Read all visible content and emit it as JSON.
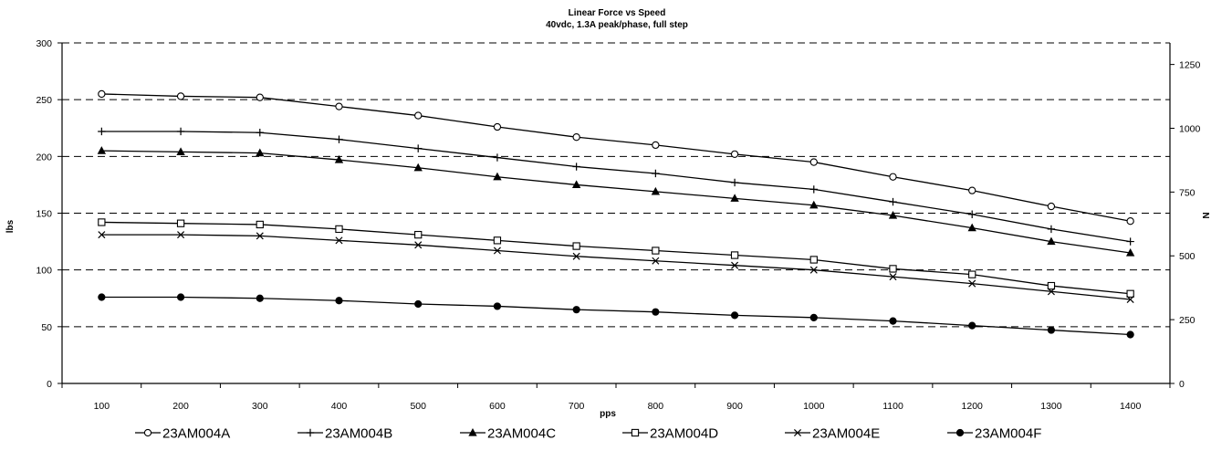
{
  "chart_data": {
    "type": "line",
    "title": "Linear Force vs Speed",
    "subtitle": "40vdc, 1.3A peak/phase, full step",
    "xlabel": "pps",
    "ylabel": "lbs",
    "y2label": "N",
    "x": [
      100,
      200,
      300,
      400,
      500,
      600,
      700,
      800,
      900,
      1000,
      1100,
      1200,
      1300,
      1400
    ],
    "ylim": [
      0,
      300
    ],
    "y_ticks": [
      0,
      50,
      100,
      150,
      200,
      250,
      300
    ],
    "y2lim": [
      0,
      1334.5
    ],
    "y2_ticks": [
      0,
      250,
      500,
      750,
      1000,
      1250
    ],
    "grid": "horizontal dashed",
    "legend_position": "bottom",
    "series": [
      {
        "name": "23AM004A",
        "marker": "open-circle",
        "values": [
          255,
          253,
          252,
          244,
          236,
          226,
          217,
          210,
          202,
          195,
          182,
          170,
          156,
          143
        ]
      },
      {
        "name": "23AM004B",
        "marker": "plus",
        "values": [
          222,
          222,
          221,
          215,
          207,
          199,
          191,
          185,
          177,
          171,
          160,
          149,
          136,
          125
        ]
      },
      {
        "name": "23AM004C",
        "marker": "filled-triangle",
        "values": [
          205,
          204,
          203,
          197,
          190,
          182,
          175,
          169,
          163,
          157,
          148,
          137,
          125,
          115
        ]
      },
      {
        "name": "23AM004D",
        "marker": "open-square",
        "values": [
          142,
          141,
          140,
          136,
          131,
          126,
          121,
          117,
          113,
          109,
          101,
          96,
          86,
          79
        ]
      },
      {
        "name": "23AM004E",
        "marker": "x",
        "values": [
          131,
          131,
          130,
          126,
          122,
          117,
          112,
          108,
          104,
          100,
          94,
          88,
          81,
          74
        ]
      },
      {
        "name": "23AM004F",
        "marker": "filled-circle",
        "values": [
          76,
          76,
          75,
          73,
          70,
          68,
          65,
          63,
          60,
          58,
          55,
          51,
          47,
          43
        ]
      }
    ]
  }
}
